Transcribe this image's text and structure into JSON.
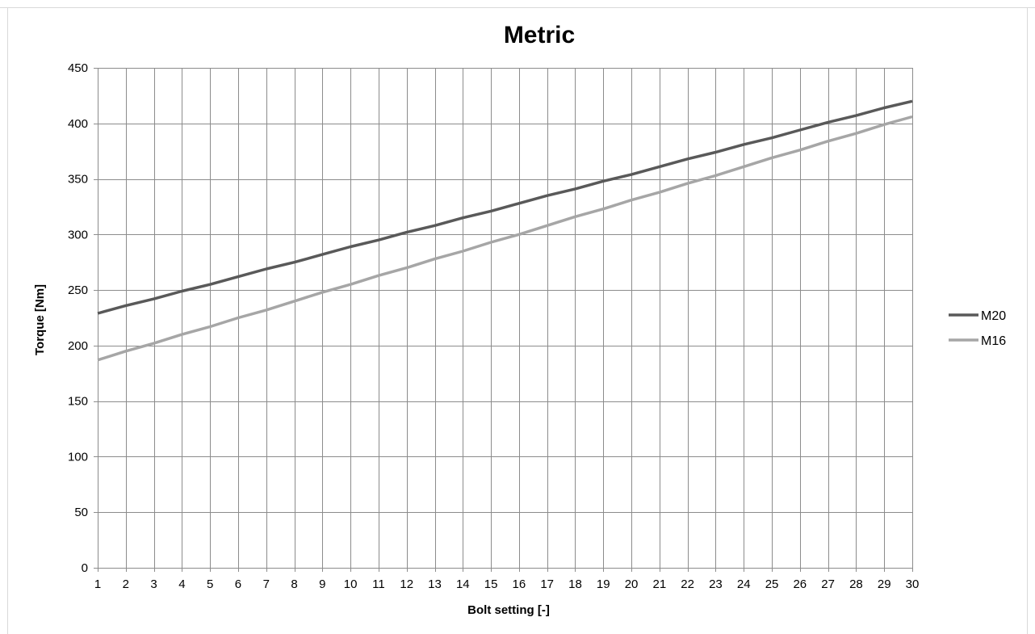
{
  "chart_data": {
    "type": "line",
    "title": "Metric",
    "xlabel": "Bolt setting [-]",
    "ylabel": "Torque [Nm]",
    "x": [
      1,
      2,
      3,
      4,
      5,
      6,
      7,
      8,
      9,
      10,
      11,
      12,
      13,
      14,
      15,
      16,
      17,
      18,
      19,
      20,
      21,
      22,
      23,
      24,
      25,
      26,
      27,
      28,
      29,
      30
    ],
    "xlim": [
      1,
      30
    ],
    "ylim": [
      0,
      450
    ],
    "yticks": [
      0,
      50,
      100,
      150,
      200,
      250,
      300,
      350,
      400,
      450
    ],
    "grid": true,
    "legend_position": "right",
    "series": [
      {
        "name": "M20",
        "color": "#595959",
        "values": [
          229,
          236,
          242,
          249,
          255,
          262,
          269,
          275,
          282,
          289,
          295,
          302,
          308,
          315,
          321,
          328,
          335,
          341,
          348,
          354,
          361,
          368,
          374,
          381,
          387,
          394,
          401,
          407,
          414,
          420
        ]
      },
      {
        "name": "M16",
        "color": "#a6a6a6",
        "values": [
          187,
          195,
          202,
          210,
          217,
          225,
          232,
          240,
          248,
          255,
          263,
          270,
          278,
          285,
          293,
          300,
          308,
          316,
          323,
          331,
          338,
          346,
          353,
          361,
          369,
          376,
          384,
          391,
          399,
          406
        ]
      }
    ]
  }
}
